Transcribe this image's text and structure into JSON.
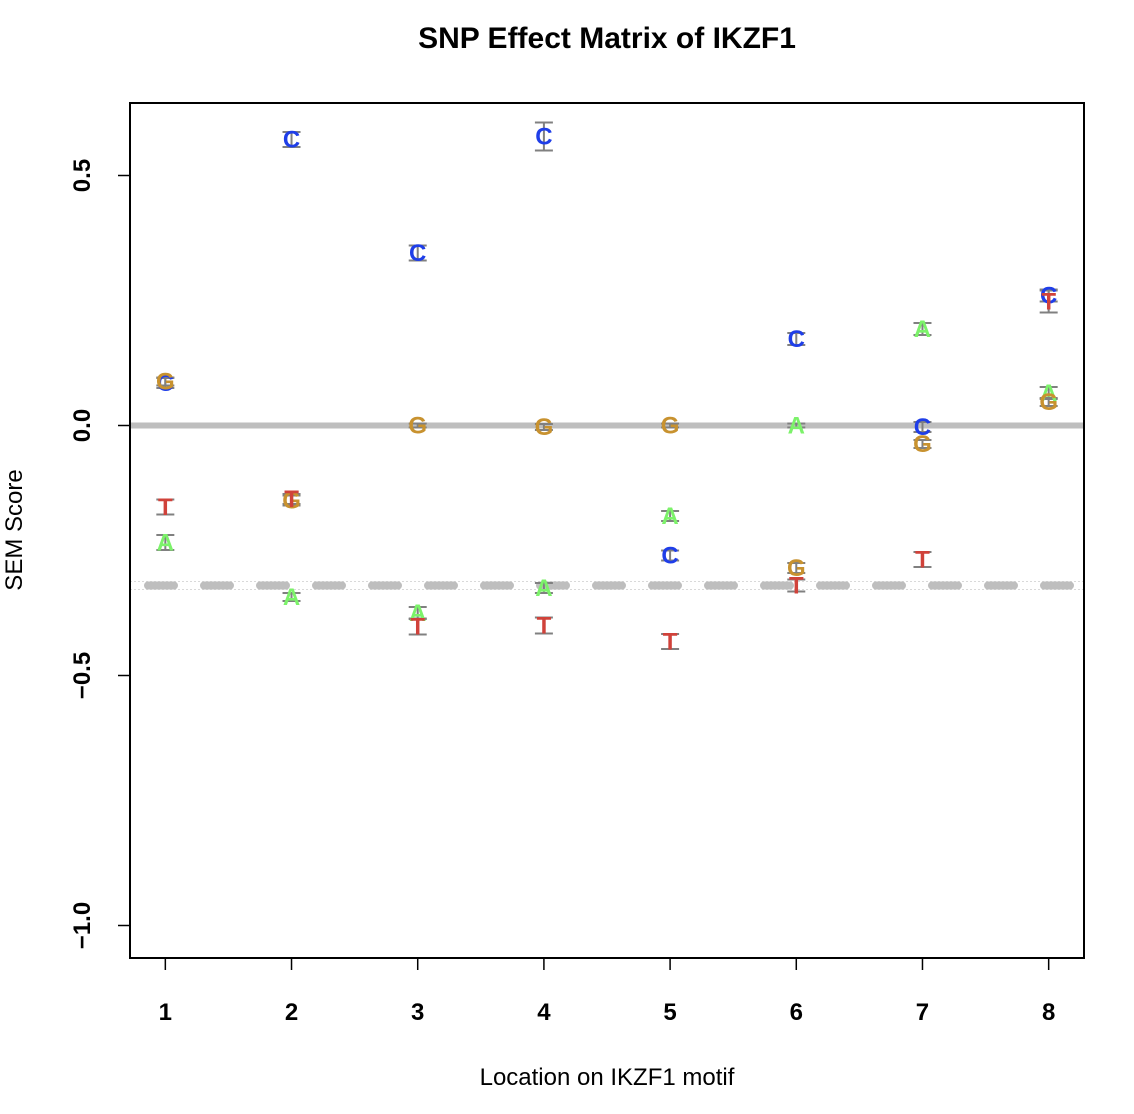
{
  "chart_data": {
    "type": "scatter",
    "title": "SNP Effect Matrix of IKZF1",
    "xlabel": "Location on IKZF1 motif",
    "ylabel": "SEM Score",
    "xlim": [
      0.72,
      8.28
    ],
    "ylim": [
      -1.065,
      0.645
    ],
    "x_ticks": [
      1,
      2,
      3,
      4,
      5,
      6,
      7,
      8
    ],
    "x_tick_labels": [
      "1",
      "2",
      "3",
      "4",
      "5",
      "6",
      "7",
      "8"
    ],
    "y_ticks": [
      -1.0,
      -0.5,
      0.0,
      0.5
    ],
    "y_tick_labels": [
      "−1.0",
      "−0.5",
      "0.0",
      "0.5"
    ],
    "reference_lines": [
      {
        "y": 0.0,
        "style": "solid",
        "color": "#bebebe"
      },
      {
        "y": -0.32,
        "style": "dashed",
        "color": "#bebebe"
      }
    ],
    "colors": {
      "A": "#7cf26a",
      "C": "#1f3ee8",
      "G": "#c8922f",
      "T": "#d0423a",
      "error_bar": "#808080"
    },
    "series": [
      {
        "name": "A",
        "x": [
          1,
          2,
          3,
          4,
          5,
          6,
          7,
          8
        ],
        "y": [
          -0.234,
          -0.343,
          -0.375,
          -0.325,
          -0.181,
          0.0,
          0.193,
          0.065
        ],
        "err": [
          0.015,
          0.008,
          0.012,
          0.01,
          0.01,
          0.004,
          0.012,
          0.012
        ]
      },
      {
        "name": "C",
        "x": [
          1,
          2,
          3,
          4,
          5,
          6,
          7,
          8
        ],
        "y": [
          0.085,
          0.572,
          0.345,
          0.578,
          -0.26,
          0.173,
          -0.003,
          0.26
        ],
        "err": [
          0.01,
          0.015,
          0.015,
          0.028,
          0.01,
          0.012,
          0.01,
          0.012
        ]
      },
      {
        "name": "G",
        "x": [
          1,
          2,
          3,
          4,
          5,
          6,
          7,
          8
        ],
        "y": [
          0.088,
          -0.15,
          0.0,
          -0.003,
          0.0,
          -0.285,
          -0.037,
          0.047
        ],
        "err": [
          0.008,
          0.01,
          0.004,
          0.006,
          0.004,
          0.01,
          0.008,
          0.008
        ]
      },
      {
        "name": "T",
        "x": [
          1,
          2,
          3,
          4,
          5,
          6,
          7,
          8
        ],
        "y": [
          -0.163,
          -0.147,
          -0.402,
          -0.4,
          -0.432,
          -0.32,
          -0.268,
          0.248
        ],
        "err": [
          0.015,
          0.01,
          0.016,
          0.016,
          0.015,
          0.012,
          0.015,
          0.022
        ]
      }
    ]
  }
}
